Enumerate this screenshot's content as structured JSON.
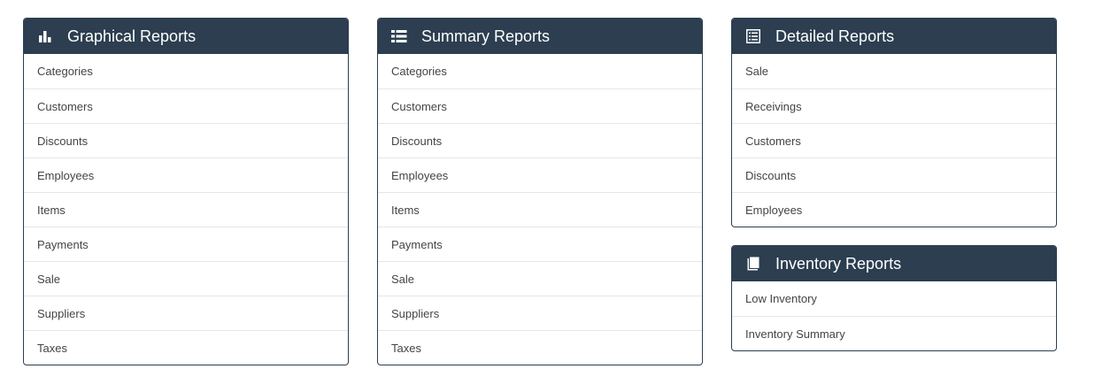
{
  "panels": {
    "graphical": {
      "title": "Graphical Reports",
      "icon": "bar-chart-icon",
      "items": [
        "Categories",
        "Customers",
        "Discounts",
        "Employees",
        "Items",
        "Payments",
        "Sale",
        "Suppliers",
        "Taxes"
      ]
    },
    "summary": {
      "title": "Summary Reports",
      "icon": "list-icon",
      "items": [
        "Categories",
        "Customers",
        "Discounts",
        "Employees",
        "Items",
        "Payments",
        "Sale",
        "Suppliers",
        "Taxes"
      ]
    },
    "detailed": {
      "title": "Detailed Reports",
      "icon": "list-alt-icon",
      "items": [
        "Sale",
        "Receivings",
        "Customers",
        "Discounts",
        "Employees"
      ]
    },
    "inventory": {
      "title": "Inventory Reports",
      "icon": "book-icon",
      "items": [
        "Low Inventory",
        "Inventory Summary"
      ]
    }
  },
  "colors": {
    "header_bg": "#2c3e50",
    "header_text": "#ffffff",
    "item_text": "#444444",
    "divider": "#e6e6e6"
  }
}
